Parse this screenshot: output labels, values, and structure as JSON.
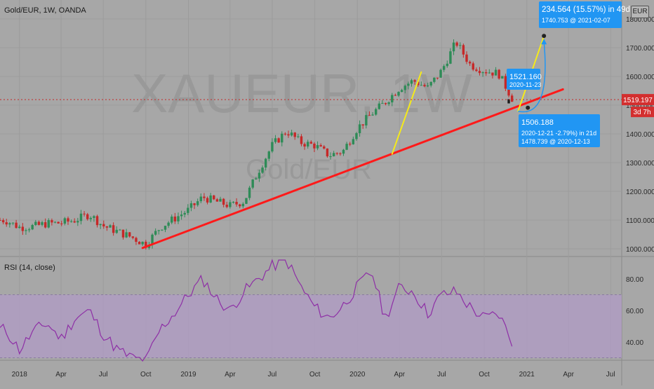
{
  "header": {
    "symbol": "Gold/EUR, 1W, OANDA",
    "currency_button": "EUR"
  },
  "rsi_header": "RSI (14, close)",
  "watermark": {
    "big": "XAUEUR, 1W",
    "sub": "Gold/EUR"
  },
  "colors": {
    "background": "#a7a7a7",
    "bull": "#2e8b57",
    "bear": "#c62828",
    "trend": "#ff1a1a",
    "projection": "#f5ea1a",
    "callout": "#2196f3",
    "rsi_line": "#8e2fa6",
    "rsi_band": "#b09bc5"
  },
  "price_label": {
    "value": "1519.197",
    "countdown": "3d 7h"
  },
  "callouts": [
    {
      "id": "top",
      "line1": "234.564 (15.57%) in 49d",
      "line2": "1740.753 @ 2021-02-07"
    },
    {
      "id": "high",
      "line1": "1521.160",
      "line2": "2020-11-23"
    },
    {
      "id": "low",
      "line1": "1506.188",
      "line2": "2020-12-21  -2.79%) in 21d",
      "line3": "1478.739 @ 2020-12-13"
    }
  ],
  "chart_data": [
    {
      "type": "candlestick",
      "title": "Gold/EUR, 1W, OANDA",
      "ylabel": "",
      "x_ticks": [
        "2018",
        "Apr",
        "Jul",
        "Oct",
        "2019",
        "Apr",
        "Jul",
        "Oct",
        "2020",
        "Apr",
        "Jul",
        "Oct",
        "2021",
        "Apr",
        "Jul"
      ],
      "y_ticks": [
        "1000.000",
        "1100.000",
        "1200.000",
        "1300.000",
        "1400.000",
        "1500.000",
        "1600.000",
        "1700.000",
        "1800.000"
      ],
      "ylim": [
        990,
        1830
      ],
      "x": [
        "2017-12-01",
        "2018-01-01",
        "2018-02-01",
        "2018-03-01",
        "2018-04-01",
        "2018-05-01",
        "2018-06-01",
        "2018-07-01",
        "2018-08-01",
        "2018-09-01",
        "2018-10-01",
        "2018-11-01",
        "2018-12-01",
        "2019-01-01",
        "2019-02-01",
        "2019-03-01",
        "2019-04-01",
        "2019-05-01",
        "2019-06-01",
        "2019-07-01",
        "2019-08-01",
        "2019-09-01",
        "2019-10-01",
        "2019-11-01",
        "2019-12-01",
        "2020-01-01",
        "2020-02-01",
        "2020-03-01",
        "2020-04-01",
        "2020-05-01",
        "2020-06-01",
        "2020-07-01",
        "2020-08-01",
        "2020-09-01",
        "2020-10-01",
        "2020-11-01",
        "2020-12-01"
      ],
      "close": [
        1100,
        1075,
        1078,
        1088,
        1090,
        1100,
        1120,
        1080,
        1060,
        1040,
        1015,
        1075,
        1105,
        1135,
        1180,
        1165,
        1150,
        1165,
        1270,
        1360,
        1410,
        1370,
        1360,
        1325,
        1340,
        1420,
        1470,
        1510,
        1560,
        1585,
        1560,
        1620,
        1720,
        1640,
        1620,
        1610,
        1521
      ],
      "trendlines": [
        {
          "name": "support",
          "from": [
            "2018-09-24",
            1003
          ],
          "to": [
            "2021-03-20",
            1555
          ]
        },
        {
          "name": "projection-1",
          "from": [
            "2020-03-16",
            1330
          ],
          "to": [
            "2020-05-18",
            1615
          ]
        },
        {
          "name": "projection-2",
          "from": [
            "2020-12-13",
            1478.739
          ],
          "to": [
            "2021-02-07",
            1740.753
          ]
        }
      ],
      "last_price": 1519.197
    },
    {
      "type": "line",
      "title": "RSI (14, close)",
      "series": [
        {
          "name": "RSI (14, close)",
          "values": [
            48,
            35,
            47,
            52,
            42,
            55,
            60,
            45,
            35,
            30,
            28,
            48,
            58,
            70,
            80,
            68,
            60,
            72,
            80,
            88,
            92,
            75,
            62,
            55,
            63,
            75,
            85,
            55,
            75,
            72,
            58,
            70,
            72,
            62,
            55,
            58,
            40
          ]
        }
      ],
      "ylim": [
        25,
        97
      ],
      "y_ticks": [
        "40.00",
        "60.00",
        "80.00"
      ],
      "band": [
        30,
        70
      ]
    }
  ]
}
